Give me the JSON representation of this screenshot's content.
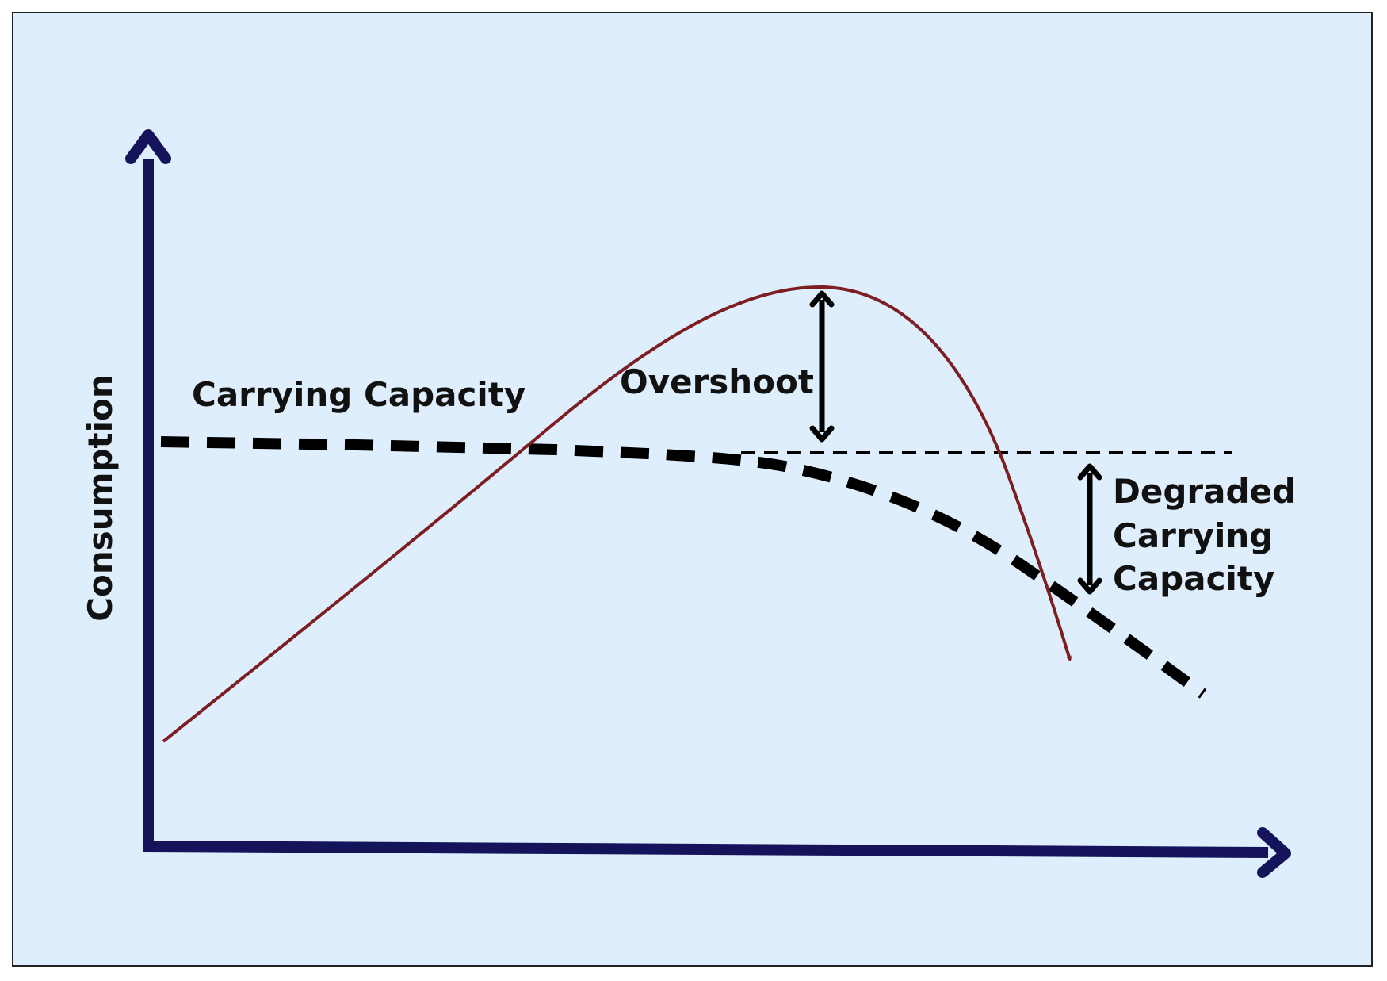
{
  "labels": {
    "y_axis": "Consumption",
    "carrying_capacity": "Carrying Capacity",
    "overshoot": "Overshoot",
    "degraded_1": "Degraded",
    "degraded_2": "Carrying",
    "degraded_3": "Capacity"
  },
  "colors": {
    "background": "#dfeefc",
    "axes": "#15135a",
    "consumption_curve": "#7d1e22",
    "capacity_line": "#000000"
  }
}
